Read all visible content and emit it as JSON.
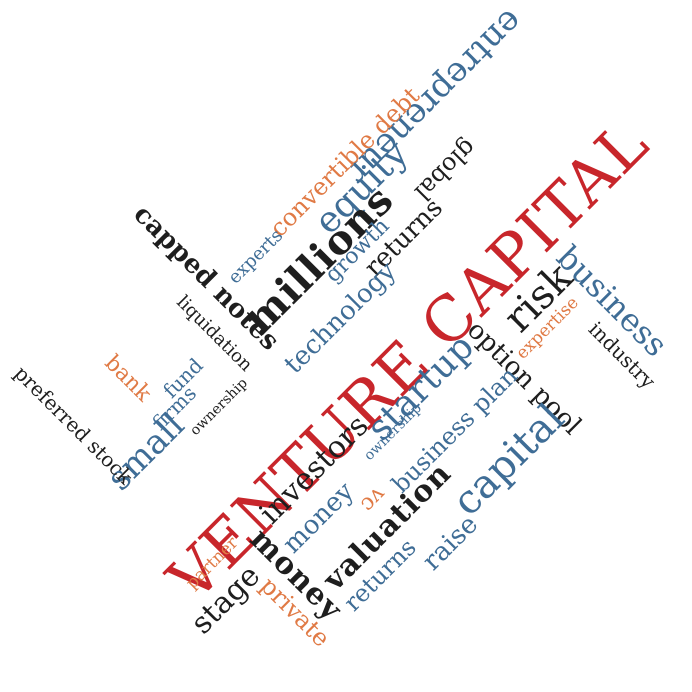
{
  "colors": {
    "red": "#c8262b",
    "blue": "#3f6d96",
    "dark": "#1e1e1e",
    "orange": "#e07a45"
  },
  "words": {
    "venture_capital_main": "VENTURE CAPITAL",
    "entrepreneur": "entrepreneur",
    "convertible_debt": "convertible debt",
    "global": "global",
    "equity": "equity",
    "millions": "millions",
    "returns_top": "returns",
    "experts": "experts",
    "growth": "growth",
    "capped_notes": "capped notes",
    "liquidation": "liquidation",
    "technology": "technology",
    "risk": "risk",
    "business_vertical": "business",
    "industry": "industry",
    "expertise": "expertise",
    "option_pool": "option pool",
    "startup": "startup",
    "ownership_right": "ownership",
    "business_plan": "business plan",
    "capital": "capital",
    "investors": "investors",
    "vc": "vc",
    "money_blue": "money",
    "valuation": "valuation",
    "raise": "raise",
    "returns_bottom": "returns",
    "money_dark": "money",
    "private": "private",
    "stage": "stage",
    "partner": "partner",
    "ownership_left": "ownership",
    "firms": "firms",
    "fund": "fund",
    "bank": "bank",
    "small": "small",
    "preferred_stock": "preferred stock"
  }
}
